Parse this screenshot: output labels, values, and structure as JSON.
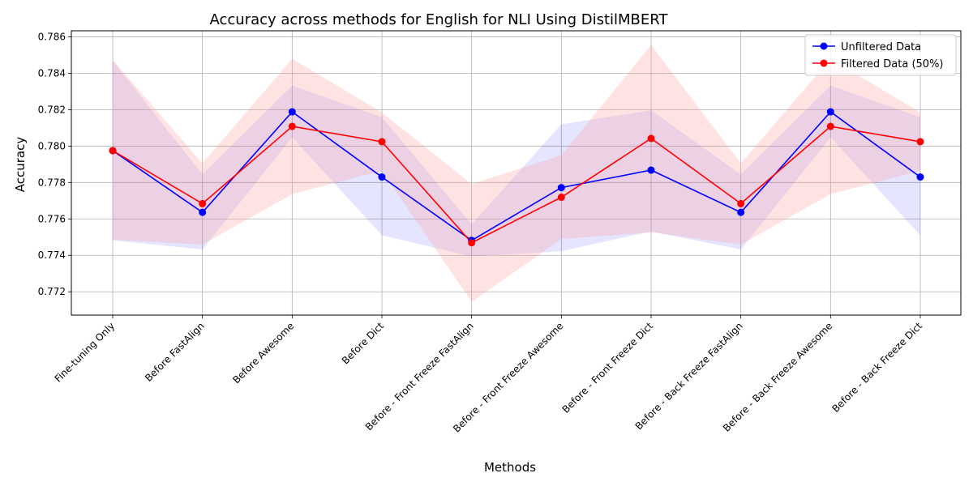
{
  "chart_data": {
    "type": "line",
    "title": "Accuracy across methods for English for NLI Using DistilMBERT",
    "xlabel": "Methods",
    "ylabel": "Accuracy",
    "categories": [
      "Fine-tuning Only",
      "Before FastAlign",
      "Before Awesome",
      "Before Dict",
      "Before - Front Freeze FastAlign",
      "Before - Front Freeze Awesome",
      "Before - Front Freeze Dict",
      "Before - Back Freeze FastAlign",
      "Before - Back Freeze Awesome",
      "Before - Back Freeze Dict"
    ],
    "ylim": [
      0.77072,
      0.78633
    ],
    "yticks": [
      "0.772",
      "0.774",
      "0.776",
      "0.778",
      "0.780",
      "0.782",
      "0.784",
      "0.786"
    ],
    "grid": true,
    "legend_position": "top-right",
    "series": [
      {
        "name": "Unfiltered Data",
        "color": "#0000ff",
        "band_color": "#0000ff",
        "values": [
          0.77975,
          0.77636,
          0.78188,
          0.7783,
          0.77482,
          0.77772,
          0.77868,
          0.77636,
          0.78188,
          0.7783
        ],
        "lower": [
          0.77482,
          0.77432,
          0.78048,
          0.7751,
          0.77394,
          0.77422,
          0.77532,
          0.77432,
          0.78048,
          0.7751
        ],
        "upper": [
          0.78468,
          0.77844,
          0.78332,
          0.78158,
          0.7757,
          0.7812,
          0.78196,
          0.77844,
          0.78332,
          0.78158
        ]
      },
      {
        "name": "Filtered Data (50%)",
        "color": "#ff0000",
        "band_color": "#ff9999",
        "values": [
          0.77975,
          0.77684,
          0.78108,
          0.78024,
          0.77469,
          0.77719,
          0.78042,
          0.77684,
          0.78108,
          0.78024
        ],
        "lower": [
          0.77486,
          0.77459,
          0.77736,
          0.77865,
          0.77144,
          0.7749,
          0.77526,
          0.77459,
          0.77736,
          0.77865
        ],
        "upper": [
          0.78473,
          0.77905,
          0.78479,
          0.78184,
          0.77792,
          0.77949,
          0.78556,
          0.77905,
          0.78479,
          0.78184
        ]
      }
    ]
  }
}
